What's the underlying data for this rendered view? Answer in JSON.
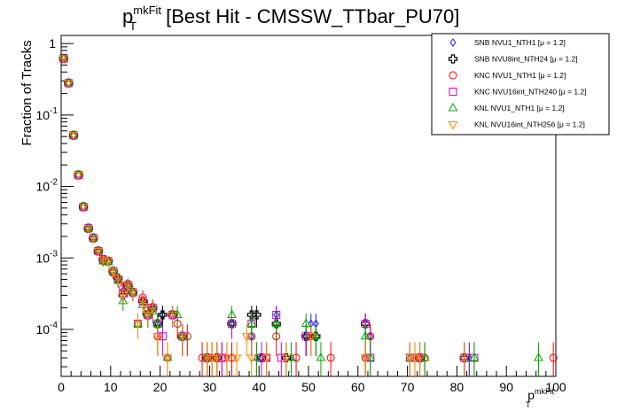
{
  "chart_data": {
    "type": "scatter",
    "title_main": "p",
    "title_sup": "mkFit",
    "title_sub": "T",
    "title_rest": " [Best Hit - CMSSW_TTbar_PU70]",
    "ylabel": "Fraction of Tracks",
    "xlabel_main": "p",
    "xlabel_sup": "mkFit",
    "xlabel_sub": "T",
    "xlim": [
      0,
      100
    ],
    "ylim": [
      2.2e-05,
      1.3
    ],
    "yscale": "log",
    "x_ticks": [
      0,
      10,
      20,
      30,
      40,
      50,
      60,
      70,
      80,
      90,
      100
    ],
    "y_ticks": [
      {
        "value": 1,
        "label": "1"
      },
      {
        "value": 0.1,
        "label": "10",
        "exp": "-1"
      },
      {
        "value": 0.01,
        "label": "10",
        "exp": "-2"
      },
      {
        "value": 0.001,
        "label": "10",
        "exp": "-3"
      },
      {
        "value": 0.0001,
        "label": "10",
        "exp": "-4"
      }
    ],
    "legend_position": "top-right",
    "series": [
      {
        "name": "SNB NVU1_NTH1 [μ =  1.2]",
        "marker": "diamond",
        "color": "#1a1aff",
        "points": [
          [
            0.5,
            0.62
          ],
          [
            1.5,
            0.28
          ],
          [
            2.5,
            0.052
          ],
          [
            3.5,
            0.0145
          ],
          [
            4.5,
            0.0052
          ],
          [
            5.5,
            0.0026
          ],
          [
            6.5,
            0.0019
          ],
          [
            7.5,
            0.00125
          ],
          [
            8.5,
            0.00095
          ],
          [
            9.5,
            0.0009
          ],
          [
            10.5,
            0.00065
          ],
          [
            11.5,
            0.00052
          ],
          [
            12.5,
            0.00035
          ],
          [
            13.5,
            0.00042
          ],
          [
            14.5,
            0.00033
          ],
          [
            16.5,
            0.00025
          ],
          [
            17.5,
            0.00016
          ],
          [
            18.5,
            0.0002
          ],
          [
            19.5,
            0.00012
          ],
          [
            20.5,
            0.00016
          ],
          [
            21.5,
            4e-05
          ],
          [
            22.5,
            0.00016
          ],
          [
            24.5,
            8e-05
          ],
          [
            29.5,
            4e-05
          ],
          [
            33.5,
            4e-05
          ],
          [
            34.5,
            0.00012
          ],
          [
            38.5,
            8e-05
          ],
          [
            39.5,
            4e-05
          ],
          [
            40.5,
            4e-05
          ],
          [
            43.5,
            0.00016
          ],
          [
            46.5,
            4e-05
          ],
          [
            49.5,
            8e-05
          ],
          [
            50.5,
            0.00012
          ],
          [
            51.5,
            0.00012
          ],
          [
            61.5,
            4e-05
          ],
          [
            62.5,
            8e-05
          ],
          [
            70.5,
            4e-05
          ],
          [
            72.5,
            4e-05
          ],
          [
            82.5,
            4e-05
          ]
        ]
      },
      {
        "name": "SNB NVU8int_NTH24 [μ =  1.2]",
        "marker": "cross",
        "color": "#000000",
        "points": [
          [
            0.5,
            0.62
          ],
          [
            1.5,
            0.28
          ],
          [
            2.5,
            0.052
          ],
          [
            3.5,
            0.0145
          ],
          [
            4.5,
            0.0052
          ],
          [
            5.5,
            0.0026
          ],
          [
            6.5,
            0.0019
          ],
          [
            7.5,
            0.00125
          ],
          [
            8.5,
            0.00095
          ],
          [
            9.5,
            0.0009
          ],
          [
            10.5,
            0.00065
          ],
          [
            11.5,
            0.00052
          ],
          [
            12.5,
            0.0003
          ],
          [
            13.5,
            0.00042
          ],
          [
            14.5,
            0.00033
          ],
          [
            16.5,
            0.00025
          ],
          [
            17.5,
            0.00016
          ],
          [
            18.5,
            0.0002
          ],
          [
            19.5,
            0.00012
          ],
          [
            20.5,
            0.00016
          ],
          [
            22.5,
            0.00016
          ],
          [
            24.5,
            8e-05
          ],
          [
            29.5,
            4e-05
          ],
          [
            31.5,
            4e-05
          ],
          [
            34.5,
            0.00012
          ],
          [
            38.5,
            0.00016
          ],
          [
            39.5,
            0.00016
          ],
          [
            40.5,
            4e-05
          ],
          [
            43.5,
            0.00012
          ],
          [
            45.5,
            4e-05
          ],
          [
            49.5,
            8e-05
          ],
          [
            51.5,
            8e-05
          ],
          [
            61.5,
            0.00012
          ],
          [
            72.5,
            4e-05
          ],
          [
            81.5,
            4e-05
          ]
        ]
      },
      {
        "name": "KNC NVU1_NTH1 [μ =  1.2]",
        "marker": "circle",
        "color": "#ff0000",
        "points": [
          [
            0.5,
            0.61
          ],
          [
            1.5,
            0.28
          ],
          [
            2.5,
            0.052
          ],
          [
            3.5,
            0.0145
          ],
          [
            4.5,
            0.0052
          ],
          [
            5.5,
            0.0026
          ],
          [
            6.5,
            0.0019
          ],
          [
            7.5,
            0.00125
          ],
          [
            8.5,
            0.0009
          ],
          [
            9.5,
            0.00088
          ],
          [
            10.5,
            0.00062
          ],
          [
            11.5,
            0.0005
          ],
          [
            12.5,
            0.00038
          ],
          [
            13.5,
            0.0004
          ],
          [
            14.5,
            0.00033
          ],
          [
            15.5,
            0.00012
          ],
          [
            16.5,
            0.00028
          ],
          [
            17.5,
            0.0002
          ],
          [
            19.5,
            8e-05
          ],
          [
            21.5,
            4e-05
          ],
          [
            23.5,
            0.00012
          ],
          [
            25.5,
            8e-05
          ],
          [
            28.5,
            4e-05
          ],
          [
            30.5,
            4e-05
          ],
          [
            32.5,
            4e-05
          ],
          [
            34.5,
            4e-05
          ],
          [
            38.5,
            8e-05
          ],
          [
            41.5,
            4e-05
          ],
          [
            43.5,
            8e-05
          ],
          [
            47.5,
            4e-05
          ],
          [
            50.5,
            8e-05
          ],
          [
            54.5,
            4e-05
          ],
          [
            61.5,
            4e-05
          ],
          [
            62.5,
            8e-05
          ],
          [
            71.5,
            4e-05
          ],
          [
            73.5,
            4e-05
          ],
          [
            99.5,
            4e-05
          ]
        ]
      },
      {
        "name": "KNC NVU16int_NTH240 [μ =  1.2]",
        "marker": "square",
        "color": "#cc00cc",
        "points": [
          [
            0.5,
            0.62
          ],
          [
            1.5,
            0.28
          ],
          [
            2.5,
            0.052
          ],
          [
            3.5,
            0.0145
          ],
          [
            4.5,
            0.0052
          ],
          [
            5.5,
            0.0026
          ],
          [
            6.5,
            0.0019
          ],
          [
            7.5,
            0.00125
          ],
          [
            8.5,
            0.00095
          ],
          [
            9.5,
            0.0009
          ],
          [
            10.5,
            0.00065
          ],
          [
            11.5,
            0.0005
          ],
          [
            12.5,
            0.00032
          ],
          [
            13.5,
            0.00042
          ],
          [
            14.5,
            0.00033
          ],
          [
            15.5,
            0.00012
          ],
          [
            16.5,
            0.00025
          ],
          [
            17.5,
            0.00016
          ],
          [
            18.5,
            0.0002
          ],
          [
            19.5,
            0.00012
          ],
          [
            20.5,
            8e-05
          ],
          [
            22.5,
            0.00016
          ],
          [
            24.5,
            8e-05
          ],
          [
            29.5,
            4e-05
          ],
          [
            32.5,
            4e-05
          ],
          [
            34.5,
            0.00012
          ],
          [
            38.5,
            0.00012
          ],
          [
            40.5,
            4e-05
          ],
          [
            41.5,
            4e-05
          ],
          [
            43.5,
            0.00016
          ],
          [
            44.5,
            4e-05
          ],
          [
            49.5,
            8e-05
          ],
          [
            61.5,
            0.00012
          ],
          [
            62.5,
            4e-05
          ],
          [
            70.5,
            4e-05
          ],
          [
            72.5,
            4e-05
          ],
          [
            81.5,
            4e-05
          ],
          [
            83.5,
            4e-05
          ]
        ]
      },
      {
        "name": "KNL NVU1_NTH1 [μ =  1.2]",
        "marker": "triangle-up",
        "color": "#00aa00",
        "points": [
          [
            0.5,
            0.61
          ],
          [
            1.5,
            0.28
          ],
          [
            2.5,
            0.052
          ],
          [
            3.5,
            0.0145
          ],
          [
            4.5,
            0.0052
          ],
          [
            5.5,
            0.0026
          ],
          [
            6.5,
            0.0019
          ],
          [
            7.5,
            0.00125
          ],
          [
            8.5,
            0.0009
          ],
          [
            9.5,
            0.00088
          ],
          [
            10.5,
            0.00065
          ],
          [
            11.5,
            0.00048
          ],
          [
            12.5,
            0.00025
          ],
          [
            13.5,
            0.0004
          ],
          [
            14.5,
            0.00033
          ],
          [
            15.5,
            0.00012
          ],
          [
            16.5,
            0.00022
          ],
          [
            17.5,
            0.00016
          ],
          [
            18.5,
            0.00018
          ],
          [
            19.5,
            0.00012
          ],
          [
            21.5,
            4e-05
          ],
          [
            23.5,
            0.00016
          ],
          [
            24.5,
            8e-05
          ],
          [
            29.5,
            4e-05
          ],
          [
            34.5,
            0.00016
          ],
          [
            38.5,
            0.00012
          ],
          [
            39.5,
            4e-05
          ],
          [
            43.5,
            0.00012
          ],
          [
            46.5,
            4e-05
          ],
          [
            49.5,
            0.00012
          ],
          [
            51.5,
            8e-05
          ],
          [
            52.5,
            4e-05
          ],
          [
            61.5,
            8e-05
          ],
          [
            62.5,
            4e-05
          ],
          [
            70.5,
            4e-05
          ],
          [
            73.5,
            4e-05
          ],
          [
            83.5,
            4e-05
          ],
          [
            96.5,
            4e-05
          ]
        ]
      },
      {
        "name": "KNL NVU16int_NTH256 [μ =  1.2]",
        "marker": "triangle-down",
        "color": "#ff8800",
        "points": [
          [
            0.5,
            0.62
          ],
          [
            1.5,
            0.28
          ],
          [
            2.5,
            0.052
          ],
          [
            3.5,
            0.0145
          ],
          [
            4.5,
            0.0052
          ],
          [
            5.5,
            0.0026
          ],
          [
            6.5,
            0.0019
          ],
          [
            7.5,
            0.00125
          ],
          [
            8.5,
            0.00095
          ],
          [
            9.5,
            0.0009
          ],
          [
            10.5,
            0.00065
          ],
          [
            11.5,
            0.00052
          ],
          [
            12.5,
            0.0003
          ],
          [
            13.5,
            0.00042
          ],
          [
            14.5,
            0.00033
          ],
          [
            15.5,
            0.00012
          ],
          [
            16.5,
            0.00025
          ],
          [
            17.5,
            0.00016
          ],
          [
            18.5,
            0.0002
          ],
          [
            19.5,
            8e-05
          ],
          [
            21.5,
            4e-05
          ],
          [
            22.5,
            0.00016
          ],
          [
            24.5,
            8e-05
          ],
          [
            29.5,
            4e-05
          ],
          [
            30.5,
            4e-05
          ],
          [
            31.5,
            4e-05
          ],
          [
            33.5,
            4e-05
          ],
          [
            35.5,
            4e-05
          ],
          [
            37.5,
            8e-05
          ],
          [
            38.5,
            4e-05
          ],
          [
            41.5,
            4e-05
          ],
          [
            45.5,
            4e-05
          ],
          [
            50.5,
            8e-05
          ],
          [
            61.5,
            4e-05
          ],
          [
            70.5,
            4e-05
          ],
          [
            71.5,
            4e-05
          ],
          [
            72.5,
            4e-05
          ],
          [
            81.5,
            4e-05
          ]
        ]
      }
    ]
  }
}
